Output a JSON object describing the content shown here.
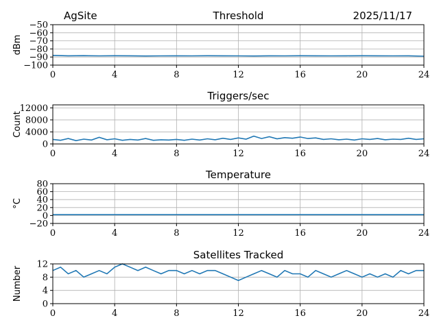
{
  "header": {
    "site": "AgSite",
    "date": "2025/11/17"
  },
  "colors": {
    "line": "#1f77b4",
    "grid": "#b0b0b0",
    "axis": "#000000"
  },
  "chart_data": [
    {
      "type": "line",
      "title": "Threshold",
      "xlabel": "",
      "ylabel": "dBm",
      "xlim": [
        0,
        24
      ],
      "ylim": [
        -100,
        -50
      ],
      "xticks": [
        0,
        4,
        8,
        12,
        16,
        20,
        24
      ],
      "yticks": [
        -50,
        -60,
        -70,
        -80,
        -90,
        -100
      ],
      "ytick_labels": [
        "−50",
        "−60",
        "−70",
        "−80",
        "−90",
        "−100"
      ],
      "grid": true,
      "series": [
        {
          "x": [
            0,
            1,
            2,
            3,
            4,
            5,
            6,
            7,
            8,
            9,
            10,
            11,
            12,
            13,
            14,
            15,
            16,
            17,
            18,
            19,
            20,
            21,
            22,
            23,
            24
          ],
          "y": [
            -88,
            -88.5,
            -88.3,
            -88.6,
            -88.4,
            -88.5,
            -88.7,
            -88.6,
            -88.5,
            -88.6,
            -88.4,
            -88.5,
            -88.6,
            -88.7,
            -88.5,
            -88.6,
            -88.4,
            -88.5,
            -88.6,
            -88.5,
            -88.4,
            -88.5,
            -88.6,
            -88.5,
            -89
          ]
        }
      ]
    },
    {
      "type": "line",
      "title": "Triggers/sec",
      "xlabel": "",
      "ylabel": "Count",
      "xlim": [
        0,
        24
      ],
      "ylim": [
        0,
        13000
      ],
      "xticks": [
        0,
        4,
        8,
        12,
        16,
        20,
        24
      ],
      "yticks": [
        0,
        4000,
        8000,
        12000
      ],
      "ytick_labels": [
        "0",
        "4000",
        "8000",
        "12000"
      ],
      "grid": true,
      "series": [
        {
          "x": [
            0,
            0.5,
            1,
            1.5,
            2,
            2.5,
            3,
            3.5,
            4,
            4.5,
            5,
            5.5,
            6,
            6.5,
            7,
            7.5,
            8,
            8.5,
            9,
            9.5,
            10,
            10.5,
            11,
            11.5,
            12,
            12.5,
            13,
            13.5,
            14,
            14.5,
            15,
            15.5,
            16,
            16.5,
            17,
            17.5,
            18,
            18.5,
            19,
            19.5,
            20,
            20.5,
            21,
            21.5,
            22,
            22.5,
            23,
            23.5,
            24
          ],
          "y": [
            1500,
            1200,
            1800,
            1100,
            1600,
            1300,
            2200,
            1400,
            1700,
            1200,
            1500,
            1300,
            1800,
            1200,
            1400,
            1300,
            1500,
            1200,
            1600,
            1300,
            1700,
            1400,
            1900,
            1500,
            2000,
            1600,
            2600,
            1800,
            2400,
            1700,
            2100,
            1900,
            2300,
            1800,
            2000,
            1500,
            1700,
            1400,
            1600,
            1300,
            1700,
            1500,
            1800,
            1400,
            1600,
            1500,
            1900,
            1500,
            1700
          ]
        }
      ]
    },
    {
      "type": "line",
      "title": "Temperature",
      "xlabel": "",
      "ylabel": "°C",
      "xlim": [
        0,
        24
      ],
      "ylim": [
        -20,
        80
      ],
      "xticks": [
        0,
        4,
        8,
        12,
        16,
        20,
        24
      ],
      "yticks": [
        -20,
        0,
        20,
        40,
        60,
        80
      ],
      "ytick_labels": [
        "−20",
        "0",
        "20",
        "40",
        "60",
        "80"
      ],
      "grid": true,
      "series": [
        {
          "x": [
            0,
            24
          ],
          "y": [
            2,
            2
          ]
        }
      ]
    },
    {
      "type": "line",
      "title": "Satellites Tracked",
      "xlabel": "",
      "ylabel": "Number",
      "xlim": [
        0,
        24
      ],
      "ylim": [
        0,
        12
      ],
      "xticks": [
        0,
        4,
        8,
        12,
        16,
        20,
        24
      ],
      "yticks": [
        0,
        4,
        8,
        12
      ],
      "ytick_labels": [
        "0",
        "4",
        "8",
        "12"
      ],
      "grid": true,
      "series": [
        {
          "x": [
            0,
            0.5,
            1,
            1.5,
            2,
            2.5,
            3,
            3.5,
            4,
            4.5,
            5,
            5.5,
            6,
            6.5,
            7,
            7.5,
            8,
            8.5,
            9,
            9.5,
            10,
            10.5,
            11,
            11.5,
            12,
            12.5,
            13,
            13.5,
            14,
            14.5,
            15,
            15.5,
            16,
            16.5,
            17,
            17.5,
            18,
            18.5,
            19,
            19.5,
            20,
            20.5,
            21,
            21.5,
            22,
            22.5,
            23,
            23.5,
            24
          ],
          "y": [
            10,
            11,
            9,
            10,
            8,
            9,
            10,
            9,
            11,
            12,
            11,
            10,
            11,
            10,
            9,
            10,
            10,
            9,
            10,
            9,
            10,
            10,
            9,
            8,
            7,
            8,
            9,
            10,
            9,
            8,
            10,
            9,
            9,
            8,
            10,
            9,
            8,
            9,
            10,
            9,
            8,
            9,
            8,
            9,
            8,
            10,
            9,
            10,
            10
          ]
        }
      ]
    }
  ]
}
